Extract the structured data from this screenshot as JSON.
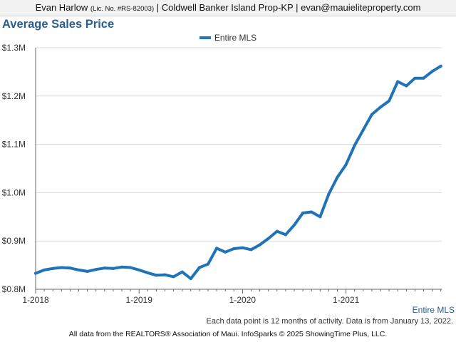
{
  "header": {
    "agent_name": "Evan Harlow",
    "license": "(Lic. No. #RS-82003)",
    "brokerage": "| Coldwell Banker Island Prop-KP |",
    "email": "evan@mauieliteproperty.com"
  },
  "footer": {
    "series_tag": "Entire MLS",
    "note": "Each data point is 12 months of activity. Data is from January 13, 2022.",
    "source": "All data from the REALTORS® Association of Maui. InfoSparks © 2025 ShowingTime Plus, LLC."
  },
  "colors": {
    "series": "#2173b8",
    "title": "#2c5d8f",
    "grid": "#d9d9d9"
  },
  "chart_data": {
    "type": "line",
    "title": "Average Sales Price",
    "legend_position": "top-center",
    "grid": true,
    "ylim": [
      0.8,
      1.3
    ],
    "y_unit": "$M",
    "y_ticks": [
      {
        "value": 1.3,
        "label": "$1.3M"
      },
      {
        "value": 1.2,
        "label": "$1.2M"
      },
      {
        "value": 1.1,
        "label": "$1.1M"
      },
      {
        "value": 1.0,
        "label": "$1.0M"
      },
      {
        "value": 0.9,
        "label": "$0.9M"
      },
      {
        "value": 0.8,
        "label": "$0.8M"
      }
    ],
    "x_ticks": [
      "1-2018",
      "1-2019",
      "1-2020",
      "1-2021"
    ],
    "x": [
      "1-2018",
      "2-2018",
      "3-2018",
      "4-2018",
      "5-2018",
      "6-2018",
      "7-2018",
      "8-2018",
      "9-2018",
      "10-2018",
      "11-2018",
      "12-2018",
      "1-2019",
      "2-2019",
      "3-2019",
      "4-2019",
      "5-2019",
      "6-2019",
      "7-2019",
      "8-2019",
      "9-2019",
      "10-2019",
      "11-2019",
      "12-2019",
      "1-2020",
      "2-2020",
      "3-2020",
      "4-2020",
      "5-2020",
      "6-2020",
      "7-2020",
      "8-2020",
      "9-2020",
      "10-2020",
      "11-2020",
      "12-2020",
      "1-2021",
      "2-2021",
      "3-2021",
      "4-2021",
      "5-2021",
      "6-2021",
      "7-2021",
      "8-2021",
      "9-2021",
      "10-2021",
      "11-2021",
      "12-2021"
    ],
    "series": [
      {
        "name": "Entire MLS",
        "values": [
          0.833,
          0.84,
          0.843,
          0.845,
          0.844,
          0.84,
          0.837,
          0.841,
          0.844,
          0.843,
          0.846,
          0.845,
          0.84,
          0.834,
          0.829,
          0.83,
          0.826,
          0.836,
          0.822,
          0.845,
          0.852,
          0.885,
          0.877,
          0.884,
          0.886,
          0.882,
          0.892,
          0.905,
          0.92,
          0.913,
          0.933,
          0.958,
          0.96,
          0.95,
          0.997,
          1.032,
          1.058,
          1.098,
          1.13,
          1.162,
          1.177,
          1.19,
          1.23,
          1.221,
          1.237,
          1.237,
          1.251,
          1.262
        ]
      }
    ]
  }
}
